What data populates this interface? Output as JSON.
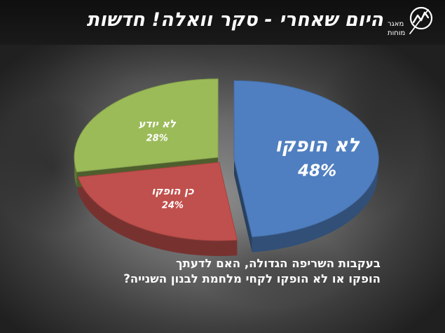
{
  "header": {
    "title": "היום שאחרי - סקר וואלה! חדשות",
    "logo_line1": "מאגר",
    "logo_line2": "מוחות"
  },
  "question": {
    "line1": "בעקבות השריפה הגדולה, האם לדעתך",
    "line2": "הופקו או לא הופקו לקחי מלחמת לבנון השנייה?"
  },
  "colors": {
    "not_learned": "#4f7fc0",
    "learned": "#c0504d",
    "dont_know": "#9bbb59"
  },
  "chart_data": {
    "type": "pie",
    "categories": [
      "לא הופקו",
      "כן הופקו",
      "לא יודע"
    ],
    "values": [
      48,
      24,
      28
    ],
    "value_labels": [
      "48%",
      "24%",
      "28%"
    ]
  }
}
